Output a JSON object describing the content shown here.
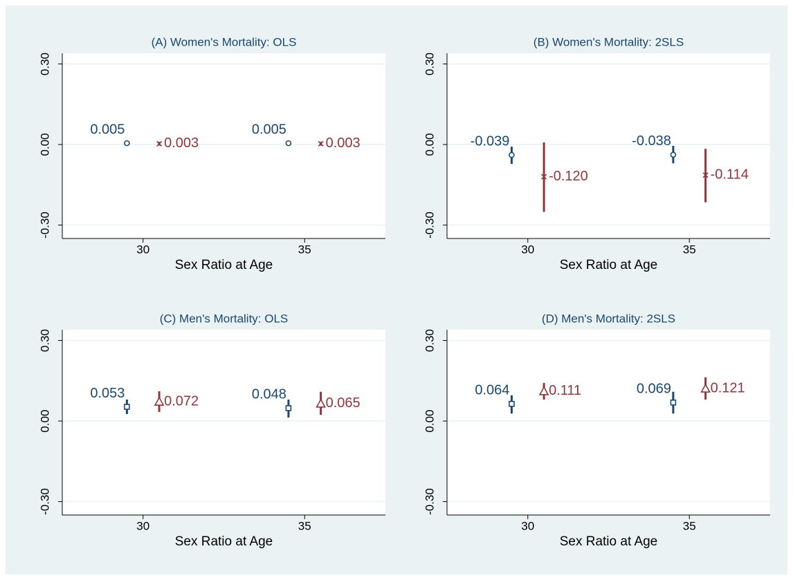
{
  "chart_data": [
    {
      "type": "scatter",
      "title": "(A) Women's Mortality: OLS",
      "x_label": "Sex Ratio at Age",
      "xlim": [
        27.5,
        37.5
      ],
      "xticks": [
        30,
        35
      ],
      "ylim": [
        -0.35,
        0.34
      ],
      "yticks": [
        {
          "value": -0.3,
          "label": "-0.30"
        },
        {
          "value": 0,
          "label": "0.00"
        },
        {
          "value": 0.3,
          "label": "0.30"
        }
      ],
      "grid": true,
      "series": [
        {
          "color": "#1a476f",
          "marker": "circle",
          "x": [
            29.5,
            34.5
          ],
          "values": [
            0.005,
            0.005
          ],
          "value_labels": [
            "0.005",
            "0.005"
          ],
          "lower": [
            0.002,
            0.002
          ],
          "upper": [
            0.008,
            0.008
          ]
        },
        {
          "color": "#90353b",
          "marker": "x",
          "x": [
            30.5,
            35.5
          ],
          "values": [
            0.003,
            0.003
          ],
          "value_labels": [
            "0.003",
            "0.003"
          ],
          "lower": [
            -0.004,
            -0.004
          ],
          "upper": [
            0.01,
            0.01
          ]
        }
      ]
    },
    {
      "type": "scatter",
      "title": "(B) Women's Mortality: 2SLS",
      "x_label": "Sex Ratio at Age",
      "xlim": [
        27.5,
        37.5
      ],
      "xticks": [
        30,
        35
      ],
      "ylim": [
        -0.35,
        0.34
      ],
      "yticks": [
        {
          "value": -0.3,
          "label": "-0.30"
        },
        {
          "value": 0,
          "label": "0.00"
        },
        {
          "value": 0.3,
          "label": "0.30"
        }
      ],
      "grid": true,
      "series": [
        {
          "color": "#1a476f",
          "marker": "circle",
          "x": [
            29.5,
            34.5
          ],
          "values": [
            -0.039,
            -0.038
          ],
          "value_labels": [
            "-0.039",
            "-0.038"
          ],
          "lower": [
            -0.072,
            -0.07
          ],
          "upper": [
            -0.008,
            -0.005
          ]
        },
        {
          "color": "#90353b",
          "marker": "x",
          "x": [
            30.5,
            35.5
          ],
          "values": [
            -0.12,
            -0.114
          ],
          "value_labels": [
            "-0.120",
            "-0.114"
          ],
          "lower": [
            -0.251,
            -0.215
          ],
          "upper": [
            0.008,
            -0.016
          ]
        }
      ]
    },
    {
      "type": "scatter",
      "title": "(C) Men's Mortality: OLS",
      "x_label": "Sex Ratio at Age",
      "xlim": [
        27.5,
        37.5
      ],
      "xticks": [
        30,
        35
      ],
      "ylim": [
        -0.35,
        0.34
      ],
      "yticks": [
        {
          "value": -0.3,
          "label": "-0.30"
        },
        {
          "value": 0,
          "label": "0.00"
        },
        {
          "value": 0.3,
          "label": "0.30"
        }
      ],
      "grid": true,
      "series": [
        {
          "color": "#1a476f",
          "marker": "square",
          "x": [
            29.5,
            34.5
          ],
          "values": [
            0.053,
            0.048
          ],
          "value_labels": [
            "0.053",
            "0.048"
          ],
          "lower": [
            0.026,
            0.013
          ],
          "upper": [
            0.08,
            0.08
          ]
        },
        {
          "color": "#90353b",
          "marker": "triangle",
          "x": [
            30.5,
            35.5
          ],
          "values": [
            0.072,
            0.065
          ],
          "value_labels": [
            "0.072",
            "0.065"
          ],
          "lower": [
            0.034,
            0.023
          ],
          "upper": [
            0.111,
            0.109
          ]
        }
      ]
    },
    {
      "type": "scatter",
      "title": "(D) Men's Mortality: 2SLS",
      "x_label": "Sex Ratio at Age",
      "xlim": [
        27.5,
        37.5
      ],
      "xticks": [
        30,
        35
      ],
      "ylim": [
        -0.35,
        0.34
      ],
      "yticks": [
        {
          "value": -0.3,
          "label": "-0.30"
        },
        {
          "value": 0,
          "label": "0.00"
        },
        {
          "value": 0.3,
          "label": "0.30"
        }
      ],
      "grid": true,
      "series": [
        {
          "color": "#1a476f",
          "marker": "square",
          "x": [
            29.5,
            34.5
          ],
          "values": [
            0.064,
            0.069
          ],
          "value_labels": [
            "0.064",
            "0.069"
          ],
          "lower": [
            0.028,
            0.028
          ],
          "upper": [
            0.096,
            0.109
          ]
        },
        {
          "color": "#90353b",
          "marker": "triangle",
          "x": [
            30.5,
            35.5
          ],
          "values": [
            0.111,
            0.121
          ],
          "value_labels": [
            "0.111",
            "0.121"
          ],
          "lower": [
            0.08,
            0.08
          ],
          "upper": [
            0.142,
            0.163
          ]
        }
      ]
    }
  ]
}
